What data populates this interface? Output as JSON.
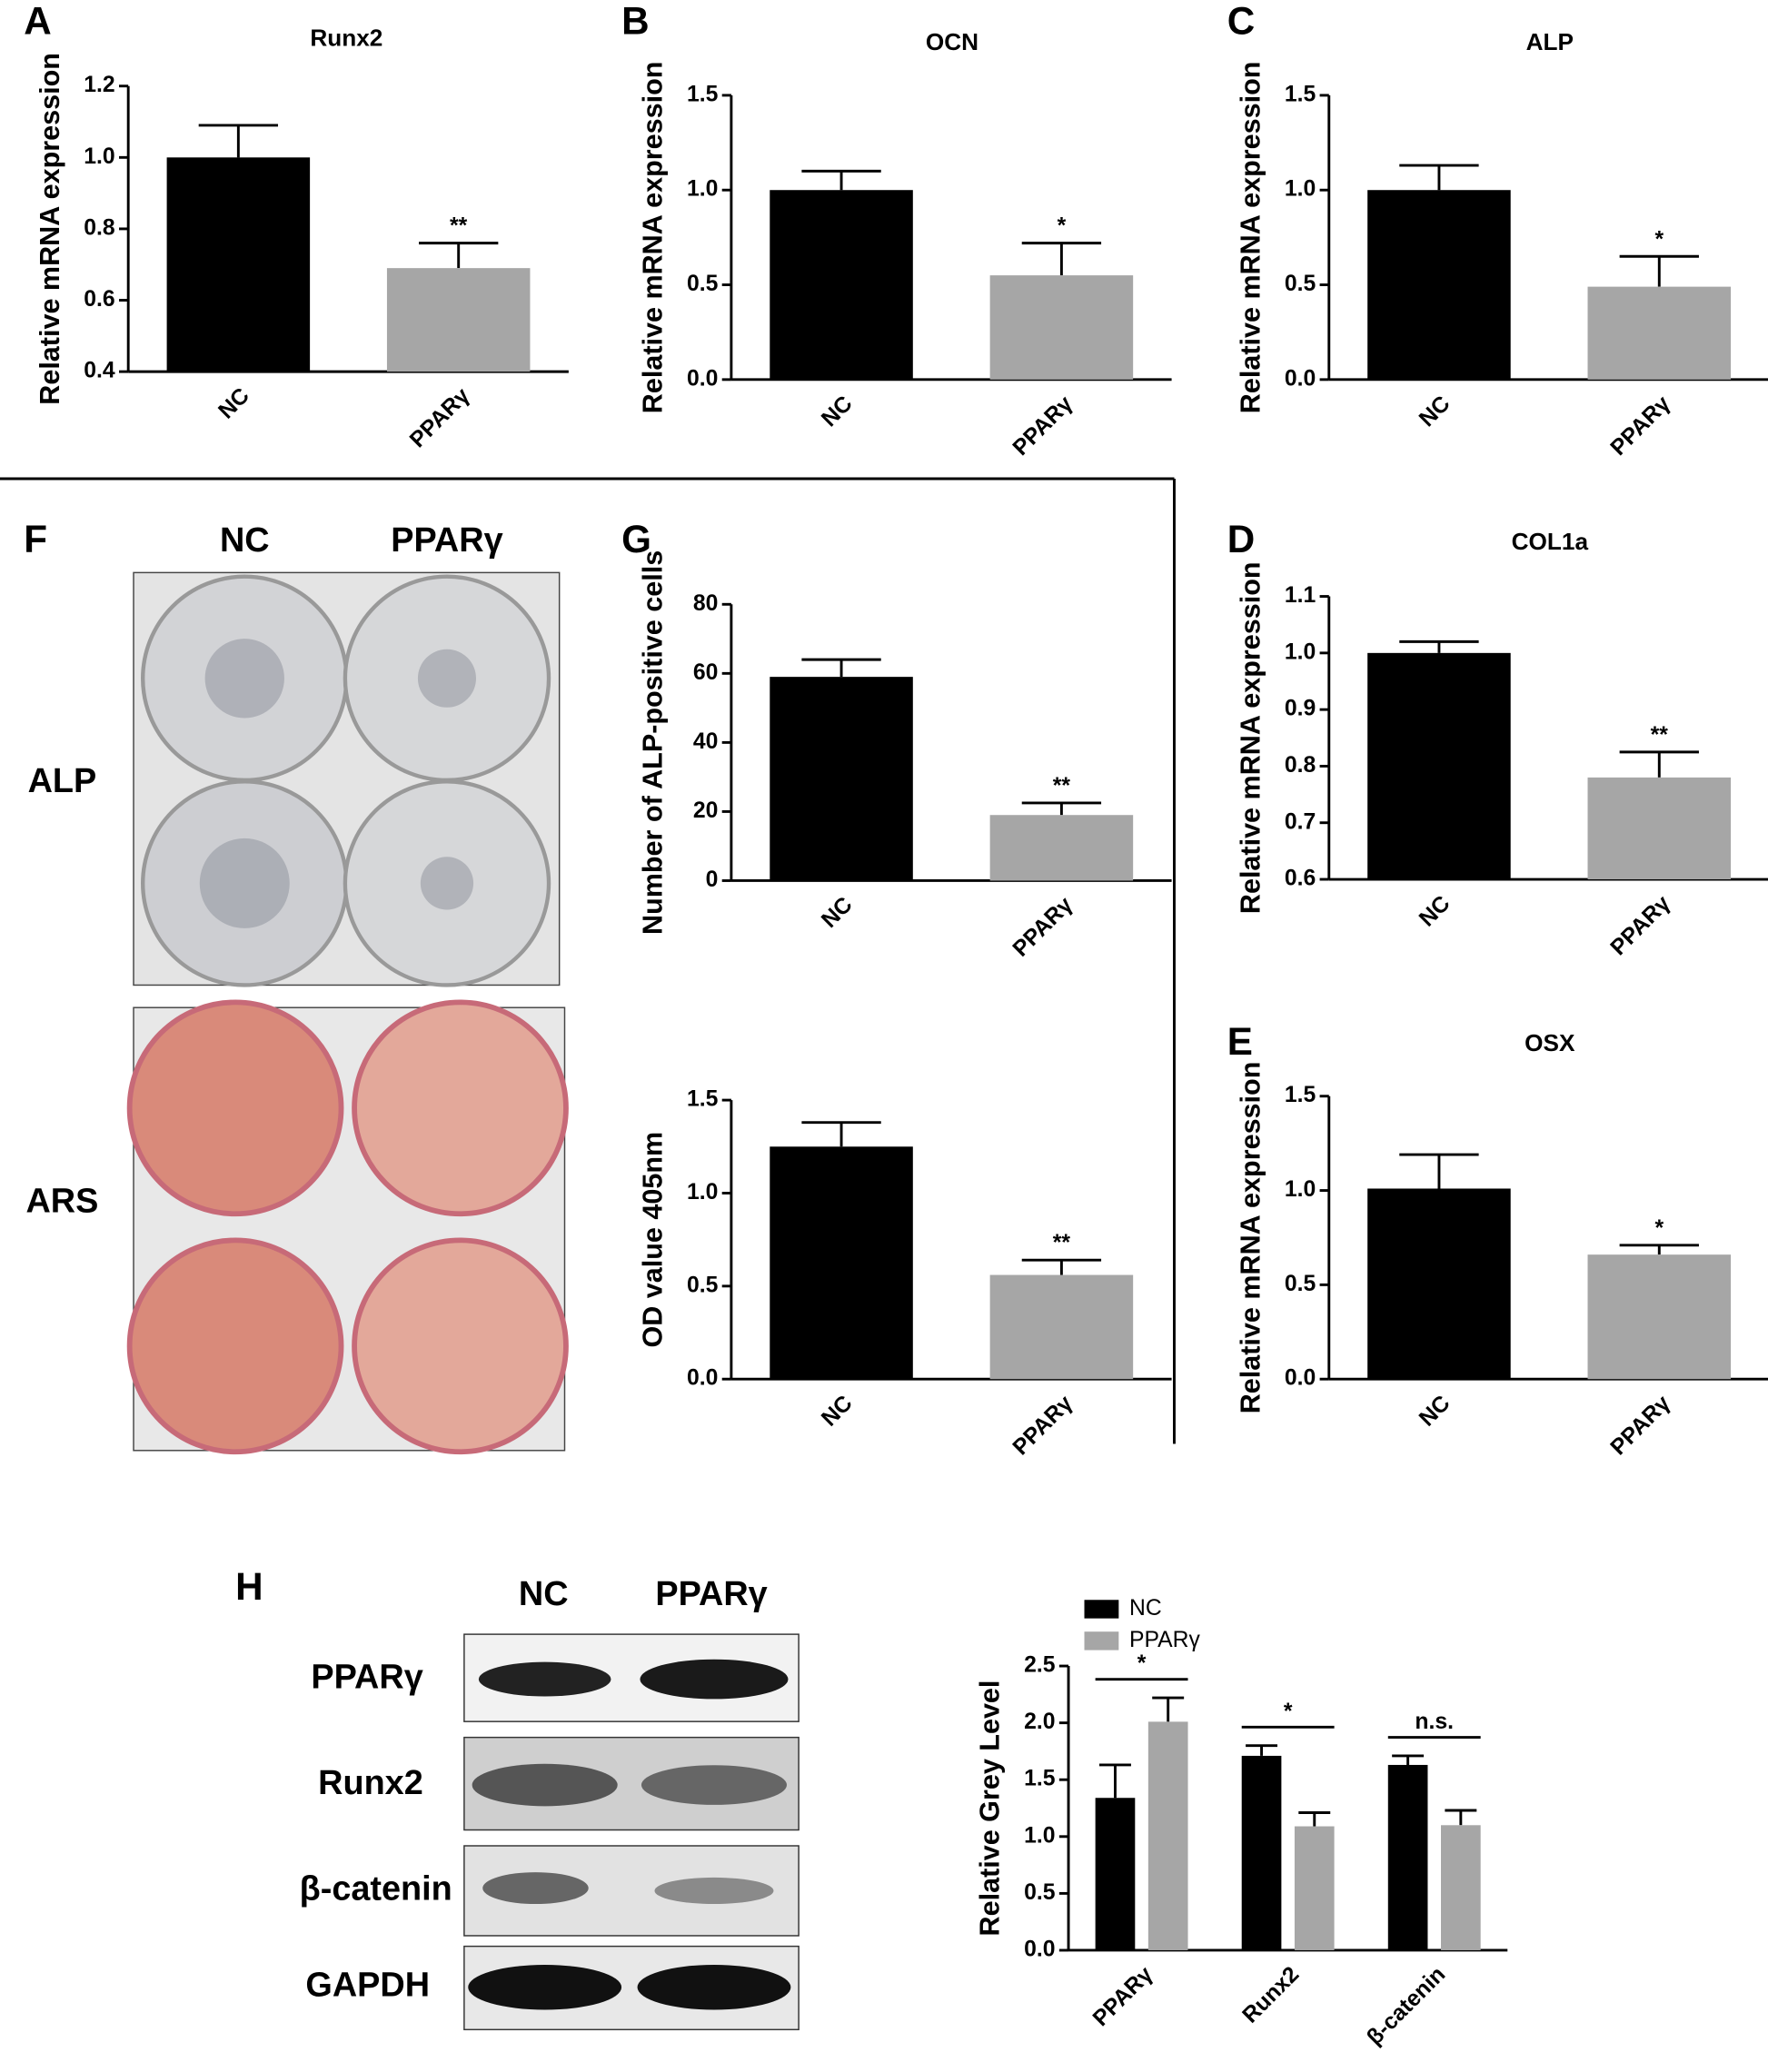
{
  "chart_data": [
    {
      "type": "bar",
      "panel": "A",
      "title": "Runx2",
      "ylabel": "Relative mRNA expression",
      "categories": [
        "NC",
        "PPARγ"
      ],
      "values": [
        1.0,
        0.69
      ],
      "errors": [
        0.09,
        0.07
      ],
      "colors": [
        "#000000",
        "#a6a6a6"
      ],
      "significance": "**",
      "ylim": [
        0.4,
        1.2
      ],
      "yticks": [
        0.4,
        0.6,
        0.8,
        {
          "value": 1.0,
          "label": "1.0"
        },
        1.2
      ]
    },
    {
      "type": "bar",
      "panel": "B",
      "title": "OCN",
      "ylabel": "Relative mRNA expression",
      "categories": [
        "NC",
        "PPARγ"
      ],
      "values": [
        1.0,
        0.55
      ],
      "errors": [
        0.1,
        0.17
      ],
      "colors": [
        "#000000",
        "#a6a6a6"
      ],
      "significance": "*",
      "ylim": [
        0,
        1.5
      ],
      "yticks": [
        {
          "value": 0,
          "label": "0.0"
        },
        0.5,
        {
          "value": 1.0,
          "label": "1.0"
        },
        1.5
      ]
    },
    {
      "type": "bar",
      "panel": "C",
      "title": "ALP",
      "ylabel": "Relative mRNA expression",
      "categories": [
        "NC",
        "PPARγ"
      ],
      "values": [
        1.0,
        0.49
      ],
      "errors": [
        0.13,
        0.16
      ],
      "colors": [
        "#000000",
        "#a6a6a6"
      ],
      "significance": "*",
      "ylim": [
        0,
        1.5
      ],
      "yticks": [
        {
          "value": 0,
          "label": "0.0"
        },
        0.5,
        {
          "value": 1.0,
          "label": "1.0"
        },
        1.5
      ]
    },
    {
      "type": "bar",
      "panel": "D",
      "title": "COL1a",
      "ylabel": "Relative mRNA expression",
      "categories": [
        "NC",
        "PPARγ"
      ],
      "values": [
        1.0,
        0.78
      ],
      "errors": [
        0.02,
        0.045
      ],
      "colors": [
        "#000000",
        "#a6a6a6"
      ],
      "significance": "**",
      "ylim": [
        0.6,
        1.1
      ],
      "yticks": [
        0.6,
        0.7,
        0.8,
        0.9,
        {
          "value": 1.0,
          "label": "1.0"
        },
        1.1
      ]
    },
    {
      "type": "bar",
      "panel": "E",
      "title": "OSX",
      "ylabel": "Relative mRNA expression",
      "categories": [
        "NC",
        "PPARγ"
      ],
      "values": [
        1.01,
        0.66
      ],
      "errors": [
        0.18,
        0.05
      ],
      "colors": [
        "#000000",
        "#a6a6a6"
      ],
      "significance": "*",
      "ylim": [
        0,
        1.5
      ],
      "yticks": [
        {
          "value": 0,
          "label": "0.0"
        },
        0.5,
        {
          "value": 1.0,
          "label": "1.0"
        },
        1.5
      ]
    },
    {
      "type": "bar",
      "panel": "G",
      "ylabel": "Number of ALP-positive cells",
      "categories": [
        "NC",
        "PPARγ"
      ],
      "values": [
        59,
        19
      ],
      "errors": [
        5,
        3.5
      ],
      "colors": [
        "#000000",
        "#a6a6a6"
      ],
      "significance": "**",
      "ylim": [
        0,
        80
      ],
      "yticks": [
        0,
        20,
        40,
        60,
        80
      ]
    },
    {
      "type": "bar",
      "ylabel": "OD value 405nm",
      "categories": [
        "NC",
        "PPARγ"
      ],
      "values": [
        1.25,
        0.56
      ],
      "errors": [
        0.13,
        0.08
      ],
      "colors": [
        "#000000",
        "#a6a6a6"
      ],
      "significance": "**",
      "ylim": [
        0,
        1.5
      ],
      "yticks": [
        {
          "value": 0,
          "label": "0.0"
        },
        0.5,
        {
          "value": 1.0,
          "label": "1.0"
        },
        1.5
      ]
    },
    {
      "type": "grouped_bar",
      "ylabel": "Relative Grey Level",
      "categories": [
        "PPARγ",
        "Runx2",
        "β-catenin"
      ],
      "series": [
        {
          "name": "NC",
          "color": "#000000",
          "values": [
            1.34,
            1.71,
            1.63
          ],
          "errors": [
            0.29,
            0.09,
            0.08
          ]
        },
        {
          "name": "PPARγ",
          "color": "#a6a6a6",
          "values": [
            2.01,
            1.09,
            1.1
          ],
          "errors": [
            0.21,
            0.12,
            0.13
          ]
        }
      ],
      "significance": [
        "*",
        "*",
        "n.s."
      ],
      "legend": "top-left",
      "ylim": [
        0,
        2.5
      ],
      "yticks": [
        {
          "value": 0,
          "label": "0.0"
        },
        0.5,
        {
          "value": 1.0,
          "label": "1.0"
        },
        1.5,
        {
          "value": 2.0,
          "label": "2.0"
        },
        2.5
      ]
    }
  ],
  "photo_panel": {
    "panel": "F",
    "columns": [
      "NC",
      "PPARγ"
    ],
    "rows": [
      "ALP",
      "ARS"
    ]
  },
  "blot_panel": {
    "panel": "H",
    "columns": [
      "NC",
      "PPARγ"
    ],
    "rows": [
      "PPARγ",
      "Runx2",
      "β-catenin",
      "GAPDH"
    ]
  }
}
